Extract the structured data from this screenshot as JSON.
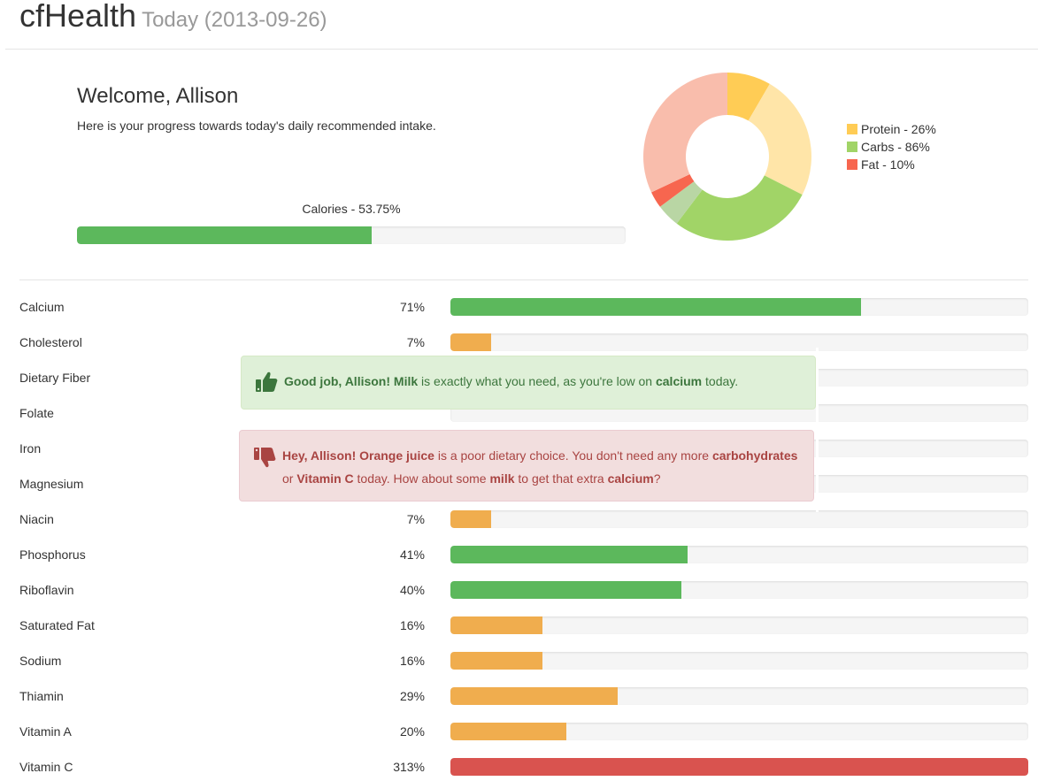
{
  "header": {
    "title": "cfHealth",
    "subtitle": "Today (2013-09-26)"
  },
  "welcome": {
    "title": "Welcome, Allison",
    "intro": "Here is your progress towards today's daily recommended intake."
  },
  "calories": {
    "label": "Calories - 53.75%",
    "value": 53.75,
    "color": "#5cb85c"
  },
  "macros": {
    "legend": [
      {
        "label": "Protein - 26%",
        "color": "#ffcc55"
      },
      {
        "label": "Carbs - 86%",
        "color": "#a1d467"
      },
      {
        "label": "Fat - 10%",
        "color": "#f7664f"
      }
    ],
    "donut_segments": [
      {
        "name": "protein",
        "value": 0.084,
        "color": "#ffcc55"
      },
      {
        "name": "protein-remaining",
        "value": 0.241,
        "color": "#ffe5a8"
      },
      {
        "name": "carbs",
        "value": 0.278,
        "color": "#a1d467"
      },
      {
        "name": "carbs-remaining",
        "value": 0.045,
        "color": "#b9d6a4"
      },
      {
        "name": "fat",
        "value": 0.032,
        "color": "#f7664f"
      },
      {
        "name": "fat-remaining",
        "value": 0.32,
        "color": "#f9bdac"
      }
    ]
  },
  "nutrients": [
    {
      "name": "Calcium",
      "pct_label": "71%",
      "value": 71,
      "color": "#5cb85c"
    },
    {
      "name": "Cholesterol",
      "pct_label": "7%",
      "value": 7,
      "color": "#f0ad4e"
    },
    {
      "name": "Dietary Fiber",
      "pct_label": "",
      "value": 0,
      "color": "#f0ad4e"
    },
    {
      "name": "Folate",
      "pct_label": "",
      "value": 0,
      "color": "#f0ad4e"
    },
    {
      "name": "Iron",
      "pct_label": "",
      "value": 0,
      "color": "#f0ad4e"
    },
    {
      "name": "Magnesium",
      "pct_label": "",
      "value": 0,
      "color": "#f0ad4e"
    },
    {
      "name": "Niacin",
      "pct_label": "7%",
      "value": 7,
      "color": "#f0ad4e"
    },
    {
      "name": "Phosphorus",
      "pct_label": "41%",
      "value": 41,
      "color": "#5cb85c"
    },
    {
      "name": "Riboflavin",
      "pct_label": "40%",
      "value": 40,
      "color": "#5cb85c"
    },
    {
      "name": "Saturated Fat",
      "pct_label": "16%",
      "value": 16,
      "color": "#f0ad4e"
    },
    {
      "name": "Sodium",
      "pct_label": "16%",
      "value": 16,
      "color": "#f0ad4e"
    },
    {
      "name": "Thiamin",
      "pct_label": "29%",
      "value": 29,
      "color": "#f0ad4e"
    },
    {
      "name": "Vitamin A",
      "pct_label": "20%",
      "value": 20,
      "color": "#f0ad4e"
    },
    {
      "name": "Vitamin C",
      "pct_label": "313%",
      "value": 313,
      "color": "#d9534f"
    }
  ],
  "alerts": {
    "success": {
      "icon": "thumbs-up-icon",
      "strong1": "Good job, Allison!",
      "strong2": "Milk",
      "text1": " is exactly what you need, as you're low on ",
      "strong3": "calcium",
      "text2": " today."
    },
    "danger": {
      "icon": "thumbs-down-icon",
      "strong1": "Hey, Allison!",
      "strong2": "Orange juice",
      "text1": " is a poor dietary choice. You don't need any more ",
      "strong3": "carbohydrates",
      "text2": " or ",
      "strong4": "Vitamin C",
      "text3": " today. How about some ",
      "strong5": "milk",
      "text4": " to get that extra ",
      "strong6": "calcium",
      "text5": "?"
    }
  }
}
